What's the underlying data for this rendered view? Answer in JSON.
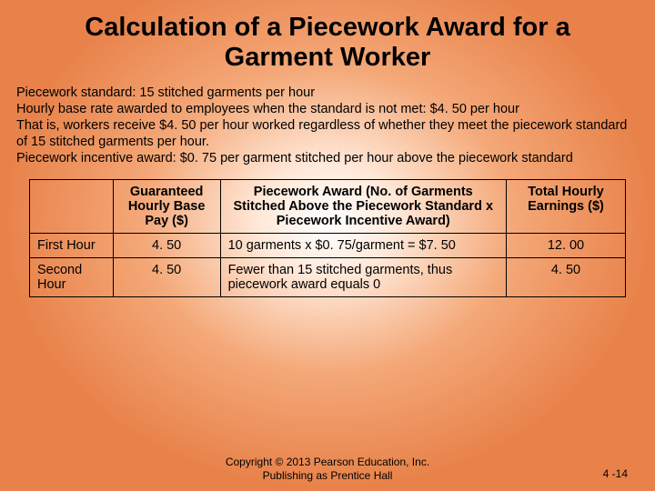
{
  "title": "Calculation of a Piecework Award for a Garment Worker",
  "intro": {
    "line1": "Piecework standard: 15 stitched garments per hour",
    "line2": "Hourly base rate awarded to employees when the standard is not met: $4. 50 per hour",
    "line3": "That is, workers receive $4. 50 per hour worked regardless of whether they meet the piecework standard of 15 stitched garments per hour.",
    "line4": "Piecework incentive award: $0. 75 per garment stitched per hour above the piecework standard"
  },
  "table": {
    "headers": {
      "h0": "",
      "h1": "Guaranteed Hourly Base Pay ($)",
      "h2": "Piecework Award (No. of Garments Stitched Above the Piecework Standard x Piecework Incentive Award)",
      "h3": "Total Hourly Earnings ($)"
    },
    "rows": {
      "r0": {
        "c0": "First Hour",
        "c1": "4. 50",
        "c2": "10 garments x $0. 75/garment = $7. 50",
        "c3": "12. 00"
      },
      "r1": {
        "c0": "Second Hour",
        "c1": "4. 50",
        "c2": "Fewer than 15 stitched garments, thus piecework award equals 0",
        "c3": "4. 50"
      }
    }
  },
  "footer": {
    "copyright": "Copyright © 2013 Pearson Education, Inc. Publishing as Prentice Hall",
    "page": "4 -14"
  }
}
